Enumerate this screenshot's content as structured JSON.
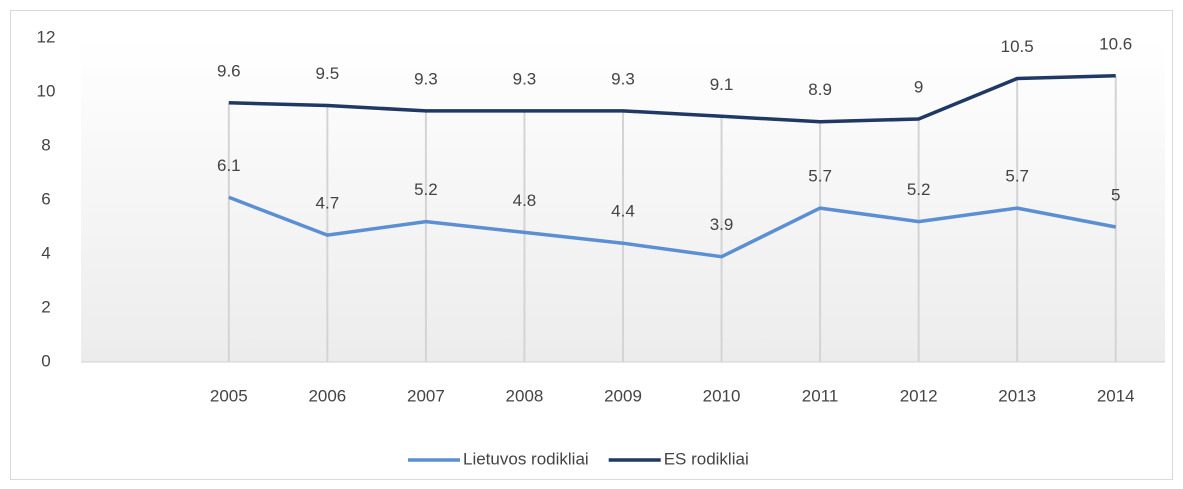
{
  "chart_data": {
    "type": "line",
    "categories": [
      null,
      "2005",
      "2006",
      "2007",
      "2008",
      "2009",
      "2010",
      "2011",
      "2012",
      "2013",
      "2014"
    ],
    "series": [
      {
        "name": "Lietuvos rodikliai",
        "color": "#5b8fd4",
        "values": [
          null,
          6.1,
          4.7,
          5.2,
          4.8,
          4.4,
          3.9,
          5.7,
          5.2,
          5.7,
          5
        ]
      },
      {
        "name": "ES rodikliai",
        "color": "#203864",
        "values": [
          null,
          9.6,
          9.5,
          9.3,
          9.3,
          9.3,
          9.1,
          8.9,
          9,
          10.5,
          10.6
        ]
      }
    ],
    "ylim": [
      0,
      12
    ],
    "yticks": [
      0,
      2,
      4,
      6,
      8,
      10,
      12
    ],
    "legend": "bottom",
    "drop_lines": true
  }
}
